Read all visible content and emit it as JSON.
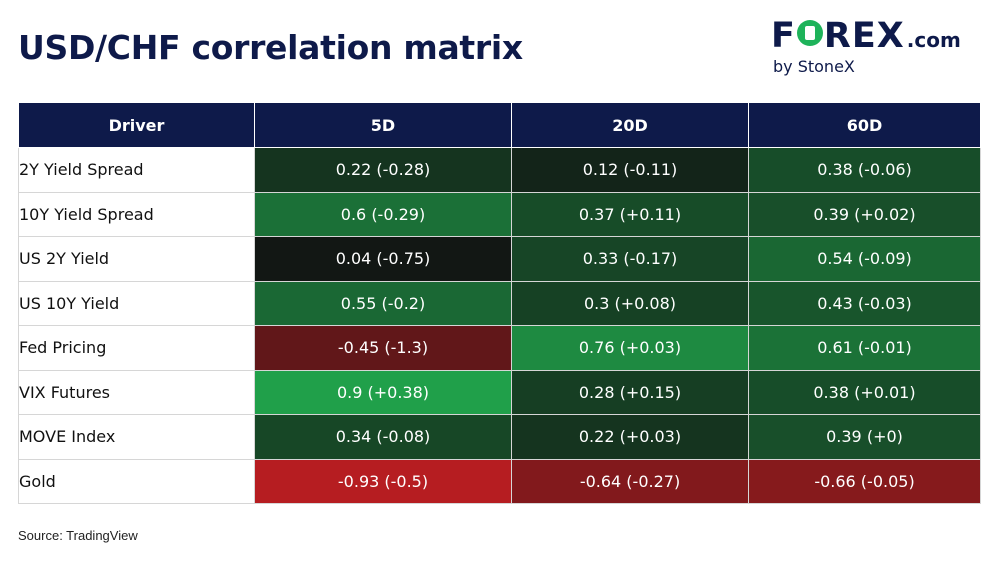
{
  "title": "USD/CHF correlation matrix",
  "logo": {
    "brand_left": "F",
    "brand_right": "REX",
    "brand_suffix": ".com",
    "sub": "by StoneX"
  },
  "source": "Source: TradingView",
  "colors": {
    "header_bg": "#0e1a4a",
    "positive_strong": "#22b050",
    "neutral": "#111111",
    "negative_strong": "#c21e22"
  },
  "chart_data": {
    "type": "table",
    "columns": [
      "Driver",
      "5D",
      "20D",
      "60D"
    ],
    "rows": [
      {
        "driver": "2Y Yield Spread",
        "values": [
          0.22,
          0.12,
          0.38
        ],
        "changes": [
          -0.28,
          -0.11,
          -0.06
        ],
        "labels": [
          "0.22 (-0.28)",
          "0.12 (-0.11)",
          "0.38 (-0.06)"
        ]
      },
      {
        "driver": "10Y Yield Spread",
        "values": [
          0.6,
          0.37,
          0.39
        ],
        "changes": [
          -0.29,
          0.11,
          0.02
        ],
        "labels": [
          "0.6 (-0.29)",
          "0.37 (+0.11)",
          "0.39 (+0.02)"
        ]
      },
      {
        "driver": "US 2Y Yield",
        "values": [
          0.04,
          0.33,
          0.54
        ],
        "changes": [
          -0.75,
          -0.17,
          -0.09
        ],
        "labels": [
          "0.04 (-0.75)",
          "0.33 (-0.17)",
          "0.54 (-0.09)"
        ]
      },
      {
        "driver": "US 10Y Yield",
        "values": [
          0.55,
          0.3,
          0.43
        ],
        "changes": [
          -0.2,
          0.08,
          -0.03
        ],
        "labels": [
          "0.55 (-0.2)",
          "0.3 (+0.08)",
          "0.43 (-0.03)"
        ]
      },
      {
        "driver": "Fed Pricing",
        "values": [
          -0.45,
          0.76,
          0.61
        ],
        "changes": [
          -1.3,
          0.03,
          -0.01
        ],
        "labels": [
          "-0.45 (-1.3)",
          "0.76 (+0.03)",
          "0.61 (-0.01)"
        ]
      },
      {
        "driver": "VIX Futures",
        "values": [
          0.9,
          0.28,
          0.38
        ],
        "changes": [
          0.38,
          0.15,
          0.01
        ],
        "labels": [
          "0.9 (+0.38)",
          "0.28 (+0.15)",
          "0.38 (+0.01)"
        ]
      },
      {
        "driver": "MOVE Index",
        "values": [
          0.34,
          0.22,
          0.39
        ],
        "changes": [
          -0.08,
          0.03,
          0
        ],
        "labels": [
          "0.34 (-0.08)",
          "0.22 (+0.03)",
          "0.39 (+0)"
        ]
      },
      {
        "driver": "Gold",
        "values": [
          -0.93,
          -0.64,
          -0.66
        ],
        "changes": [
          -0.5,
          -0.27,
          -0.05
        ],
        "labels": [
          "-0.93 (-0.5)",
          "-0.64 (-0.27)",
          "-0.66 (-0.05)"
        ]
      }
    ]
  }
}
